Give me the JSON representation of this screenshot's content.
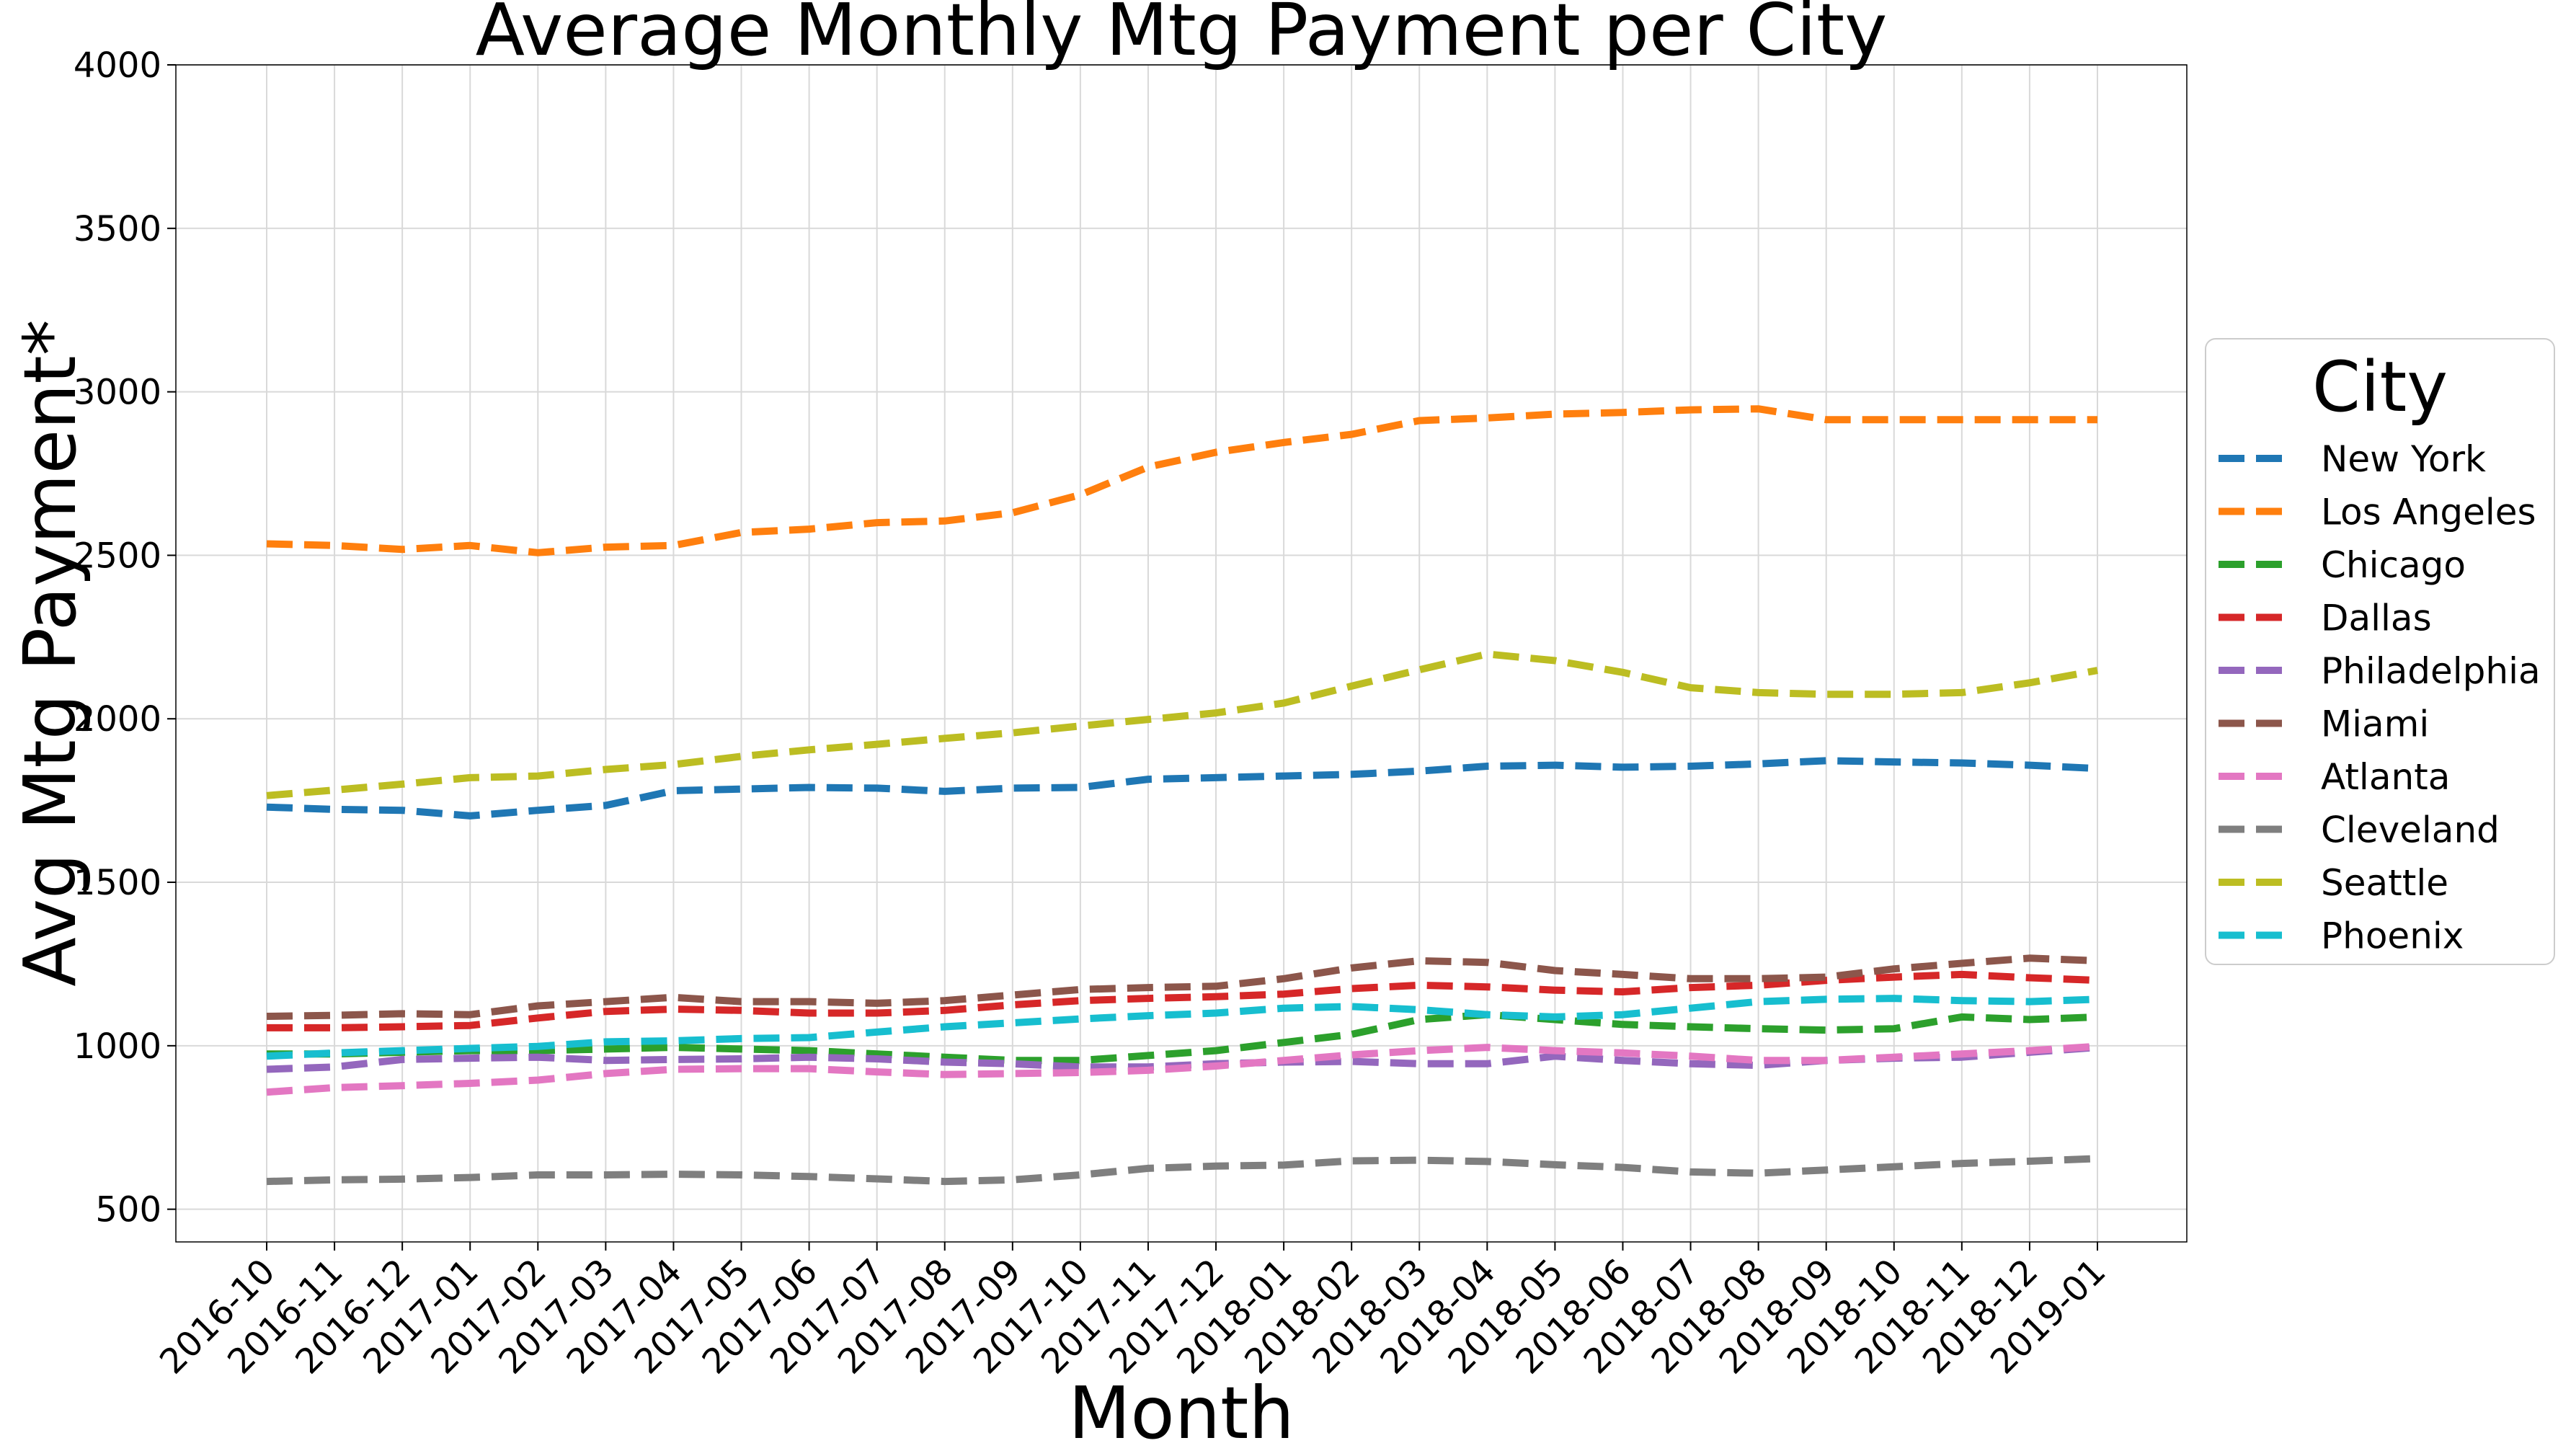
{
  "chart_data": {
    "type": "line",
    "title": "Average Monthly Mtg Payment per City",
    "xlabel": "Month",
    "ylabel": "Avg Mtg Payment*",
    "ylim": [
      400,
      4000
    ],
    "yticks": [
      500,
      1000,
      1500,
      2000,
      2500,
      3000,
      3500,
      4000
    ],
    "grid": true,
    "legend": {
      "title": "City",
      "placement": "center-right outside"
    },
    "categories": [
      "2016-10",
      "2016-11",
      "2016-12",
      "2017-01",
      "2017-02",
      "2017-03",
      "2017-04",
      "2017-05",
      "2017-06",
      "2017-07",
      "2017-08",
      "2017-09",
      "2017-10",
      "2017-11",
      "2017-12",
      "2018-01",
      "2018-02",
      "2018-03",
      "2018-04",
      "2018-05",
      "2018-06",
      "2018-07",
      "2018-08",
      "2018-09",
      "2018-10",
      "2018-11",
      "2018-12",
      "2019-01"
    ],
    "series": [
      {
        "name": "New York",
        "color": "#1f77b4",
        "values": [
          1730,
          1723,
          1720,
          1703,
          1720,
          1735,
          1780,
          1785,
          1790,
          1788,
          1778,
          1788,
          1790,
          1815,
          1820,
          1825,
          1830,
          1840,
          1855,
          1858,
          1852,
          1855,
          1862,
          1872,
          1868,
          1865,
          1858,
          1848
        ]
      },
      {
        "name": "Los Angeles",
        "color": "#ff7f0e",
        "values": [
          2535,
          2530,
          2518,
          2530,
          2508,
          2525,
          2530,
          2570,
          2580,
          2600,
          2605,
          2630,
          2685,
          2770,
          2815,
          2845,
          2870,
          2912,
          2920,
          2932,
          2937,
          2945,
          2948,
          2915,
          2915,
          2915,
          2915,
          2915
        ]
      },
      {
        "name": "Chicago",
        "color": "#2ca02c",
        "values": [
          975,
          975,
          980,
          985,
          985,
          990,
          995,
          990,
          985,
          975,
          965,
          955,
          955,
          970,
          985,
          1010,
          1035,
          1080,
          1095,
          1080,
          1065,
          1058,
          1052,
          1048,
          1052,
          1088,
          1080,
          1088
        ]
      },
      {
        "name": "Dallas",
        "color": "#d62728",
        "values": [
          1055,
          1055,
          1058,
          1062,
          1085,
          1105,
          1112,
          1108,
          1100,
          1100,
          1108,
          1125,
          1138,
          1145,
          1150,
          1158,
          1175,
          1185,
          1180,
          1170,
          1165,
          1178,
          1185,
          1200,
          1210,
          1218,
          1208,
          1200
        ]
      },
      {
        "name": "Philadelphia",
        "color": "#9467bd",
        "values": [
          928,
          935,
          958,
          962,
          965,
          955,
          958,
          960,
          965,
          960,
          950,
          945,
          935,
          935,
          945,
          950,
          952,
          945,
          945,
          968,
          955,
          945,
          940,
          955,
          962,
          965,
          980,
          995
        ]
      },
      {
        "name": "Miami",
        "color": "#8c564b",
        "values": [
          1090,
          1093,
          1098,
          1095,
          1122,
          1135,
          1148,
          1135,
          1135,
          1130,
          1138,
          1155,
          1172,
          1178,
          1182,
          1205,
          1238,
          1260,
          1255,
          1230,
          1218,
          1205,
          1205,
          1210,
          1235,
          1252,
          1268,
          1260
        ]
      },
      {
        "name": "Atlanta",
        "color": "#e377c2",
        "values": [
          858,
          872,
          878,
          885,
          895,
          915,
          928,
          930,
          930,
          920,
          912,
          915,
          918,
          925,
          938,
          955,
          972,
          985,
          995,
          985,
          978,
          968,
          955,
          955,
          965,
          975,
          985,
          998
        ]
      },
      {
        "name": "Cleveland",
        "color": "#7f7f7f",
        "values": [
          585,
          590,
          592,
          597,
          605,
          605,
          607,
          605,
          600,
          593,
          585,
          590,
          605,
          625,
          632,
          635,
          648,
          650,
          646,
          636,
          628,
          614,
          610,
          620,
          630,
          640,
          647,
          655
        ]
      },
      {
        "name": "Seattle",
        "color": "#bcbd22",
        "values": [
          1765,
          1782,
          1800,
          1820,
          1825,
          1845,
          1860,
          1885,
          1905,
          1922,
          1940,
          1957,
          1978,
          1998,
          2018,
          2048,
          2100,
          2150,
          2198,
          2178,
          2142,
          2095,
          2080,
          2075,
          2075,
          2080,
          2110,
          2148
        ]
      },
      {
        "name": "Phoenix",
        "color": "#17becf",
        "values": [
          968,
          978,
          985,
          992,
          998,
          1012,
          1015,
          1022,
          1025,
          1042,
          1058,
          1070,
          1082,
          1092,
          1100,
          1115,
          1120,
          1110,
          1095,
          1088,
          1095,
          1115,
          1135,
          1142,
          1145,
          1138,
          1135,
          1142
        ]
      }
    ]
  }
}
